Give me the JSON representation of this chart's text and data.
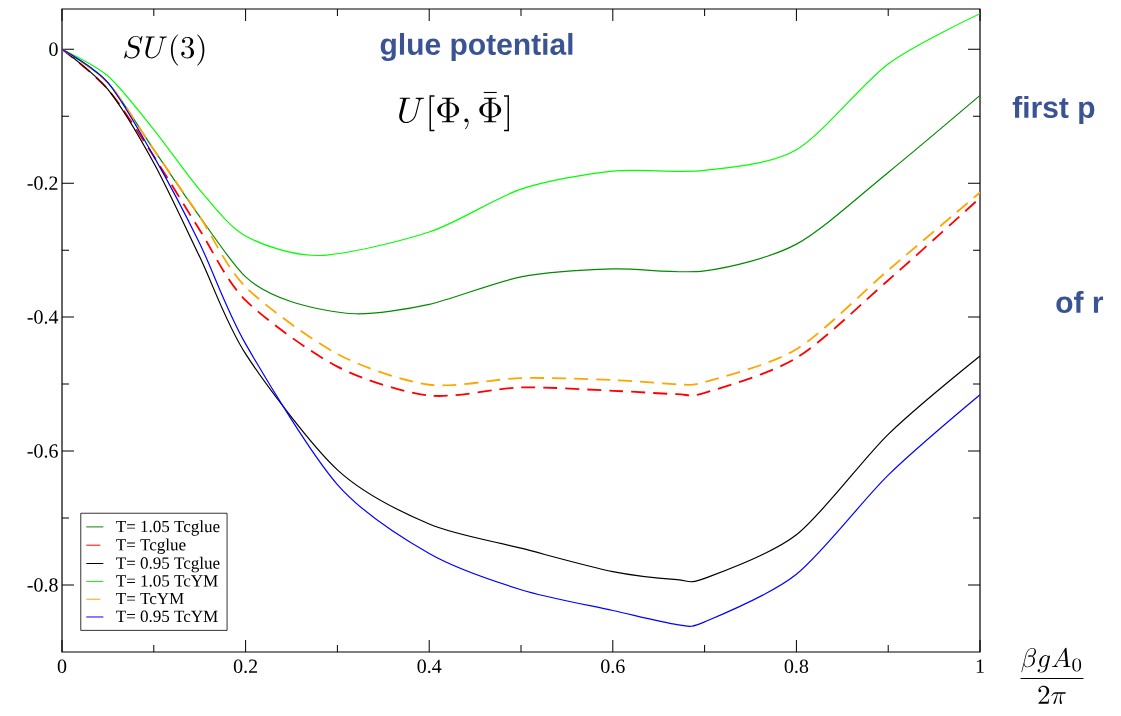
{
  "chart_data": {
    "type": "line",
    "xlabel": "\\frac{\\beta g A_0}{2\\pi}",
    "annotations": [
      "SU(3)",
      "glue potential",
      "U[\\Phi,\\bar\\Phi]",
      "first p",
      "of r"
    ],
    "xlim": [
      0,
      1
    ],
    "ylim": [
      -0.9,
      0.06
    ],
    "xticks": [
      0,
      {
        "value": 0.1,
        "label": null
      },
      0.2,
      {
        "value": 0.3,
        "label": null
      },
      0.4,
      {
        "value": 0.5,
        "label": null
      },
      0.6,
      {
        "value": 0.7,
        "label": null
      },
      0.8,
      {
        "value": 0.9,
        "label": null
      },
      1
    ],
    "yticks": [
      0,
      {
        "value": -0.1,
        "label": null
      },
      -0.2,
      {
        "value": -0.3,
        "label": null
      },
      -0.4,
      {
        "value": -0.5,
        "label": null
      },
      -0.6,
      {
        "value": -0.7,
        "label": null
      },
      -0.8
    ],
    "legend": "bottom left",
    "series": [
      {
        "name": "T= 1.05 Tcglue",
        "color": "#008b00",
        "line_style": "solid",
        "x": [
          0,
          0.05,
          0.1,
          0.15,
          0.2,
          0.25,
          0.32,
          0.4,
          0.5,
          0.6,
          0.7,
          0.8,
          0.9,
          1
        ],
        "values": [
          0,
          -0.05,
          -0.15,
          -0.25,
          -0.34,
          -0.377,
          -0.395,
          -0.381,
          -0.34,
          -0.328,
          -0.331,
          -0.291,
          -0.184,
          -0.069
        ]
      },
      {
        "name": "T= Tcglue",
        "color": "#ff0000",
        "line_style": "dashed",
        "x": [
          0,
          0.05,
          0.1,
          0.15,
          0.2,
          0.3,
          0.4,
          0.5,
          0.6,
          0.67,
          0.7,
          0.8,
          0.9,
          1
        ],
        "values": [
          0,
          -0.06,
          -0.16,
          -0.27,
          -0.375,
          -0.474,
          -0.517,
          -0.505,
          -0.51,
          -0.515,
          -0.513,
          -0.461,
          -0.345,
          -0.222
        ]
      },
      {
        "name": "T= 0.95 Tcglue",
        "color": "#000000",
        "line_style": "solid",
        "x": [
          0,
          0.05,
          0.1,
          0.15,
          0.2,
          0.3,
          0.4,
          0.5,
          0.6,
          0.67,
          0.7,
          0.8,
          0.9,
          1
        ],
        "values": [
          0,
          -0.06,
          -0.17,
          -0.31,
          -0.455,
          -0.628,
          -0.709,
          -0.745,
          -0.78,
          -0.792,
          -0.79,
          -0.725,
          -0.575,
          -0.458
        ]
      },
      {
        "name": "T= 1.05 TcYM",
        "color": "#00ff00",
        "line_style": "solid",
        "x": [
          0,
          0.05,
          0.1,
          0.15,
          0.2,
          0.28,
          0.4,
          0.5,
          0.6,
          0.7,
          0.8,
          0.9,
          1
        ],
        "values": [
          0,
          -0.04,
          -0.12,
          -0.21,
          -0.279,
          -0.308,
          -0.273,
          -0.209,
          -0.182,
          -0.181,
          -0.15,
          -0.022,
          0.053
        ]
      },
      {
        "name": "T= TcYM",
        "color": "#ffa500",
        "line_style": "dashed",
        "x": [
          0,
          0.05,
          0.1,
          0.15,
          0.2,
          0.3,
          0.4,
          0.5,
          0.6,
          0.67,
          0.7,
          0.8,
          0.9,
          1
        ],
        "values": [
          0,
          -0.05,
          -0.15,
          -0.25,
          -0.355,
          -0.455,
          -0.501,
          -0.491,
          -0.494,
          -0.5,
          -0.497,
          -0.448,
          -0.33,
          -0.214
        ]
      },
      {
        "name": "T= 0.95 TcYM",
        "color": "#0000ff",
        "line_style": "solid",
        "x": [
          0,
          0.05,
          0.1,
          0.15,
          0.2,
          0.3,
          0.4,
          0.5,
          0.6,
          0.67,
          0.7,
          0.8,
          0.9,
          1
        ],
        "values": [
          0,
          -0.05,
          -0.16,
          -0.29,
          -0.44,
          -0.65,
          -0.753,
          -0.807,
          -0.838,
          -0.859,
          -0.855,
          -0.784,
          -0.636,
          -0.516
        ]
      }
    ]
  }
}
